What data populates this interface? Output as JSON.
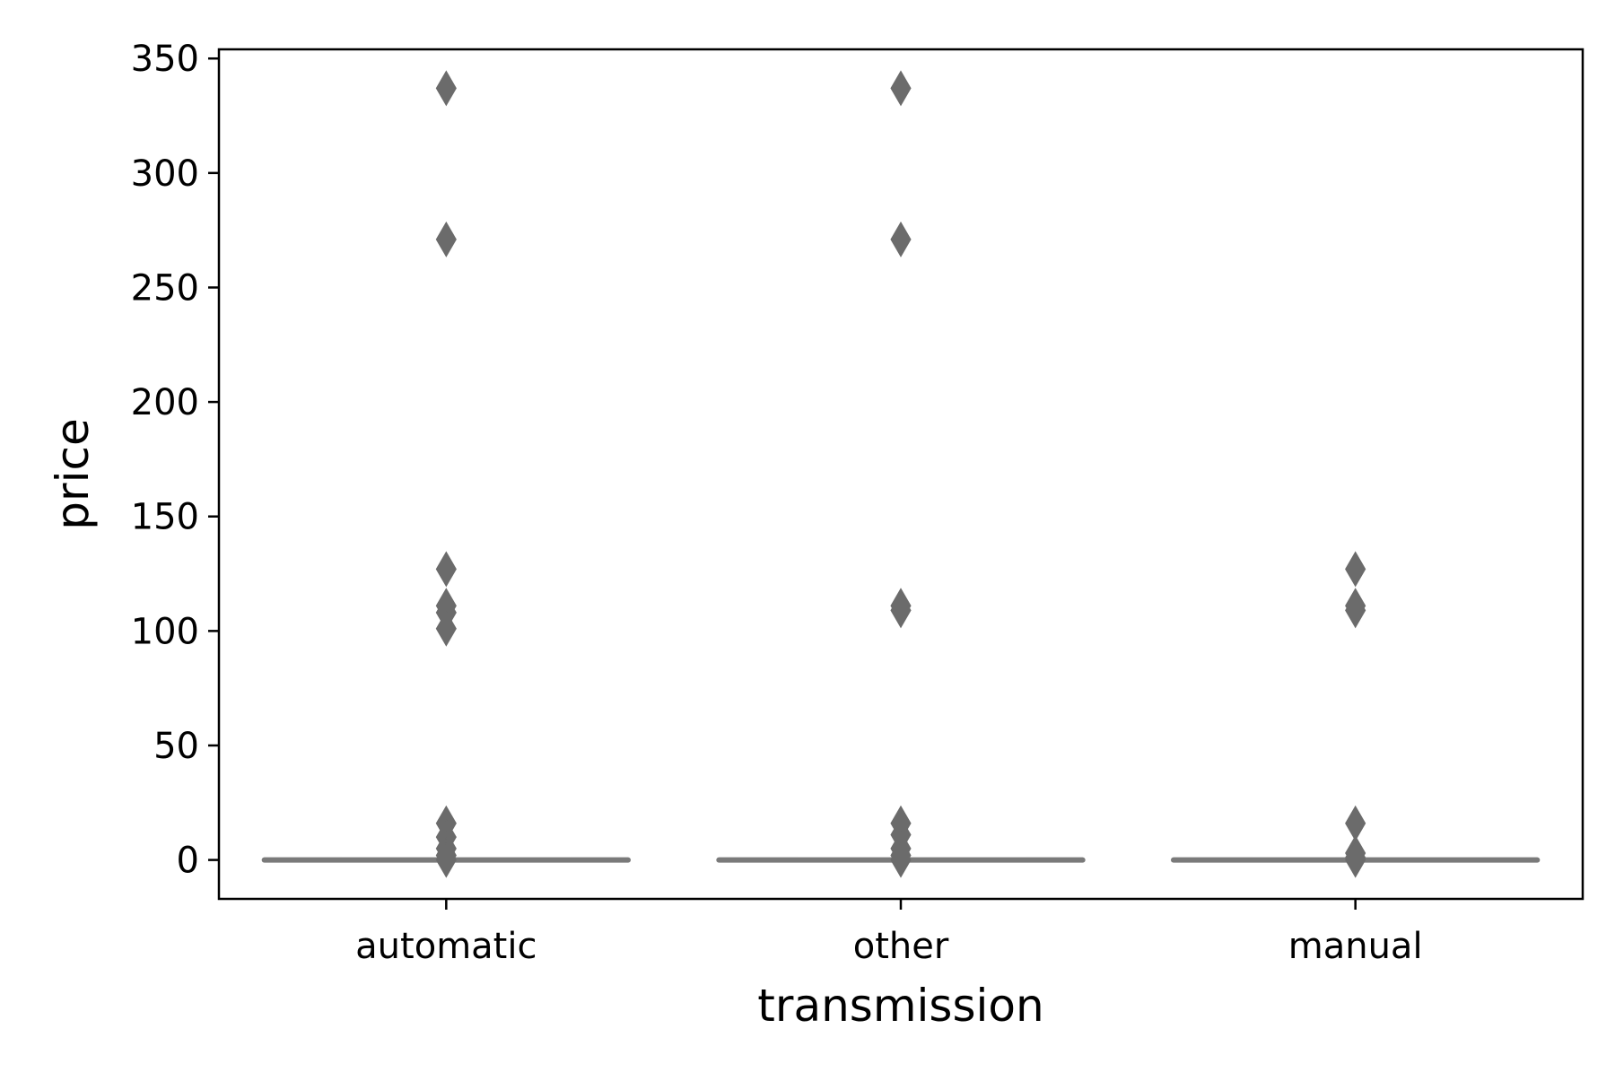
{
  "chart_data": {
    "type": "box",
    "title": "",
    "xlabel": "transmission",
    "ylabel": "price",
    "categories": [
      "automatic",
      "other",
      "manual"
    ],
    "ylim": [
      -17,
      354
    ],
    "yticks": [
      0,
      50,
      100,
      150,
      200,
      250,
      300,
      350
    ],
    "grid": false,
    "legend": "none",
    "colors": {
      "box": "#7a7a7a",
      "marker": "#6b6b6b",
      "axes": "#000000"
    },
    "boxes": [
      {
        "category": "automatic",
        "q1": 0,
        "median": 0,
        "q3": 0,
        "whisker_low": 0,
        "whisker_high": 0,
        "outliers": [
          337,
          271,
          127,
          111,
          108,
          101,
          16,
          10,
          5,
          2,
          0
        ]
      },
      {
        "category": "other",
        "q1": 0,
        "median": 0,
        "q3": 0,
        "whisker_low": 0,
        "whisker_high": 0,
        "outliers": [
          337,
          271,
          111,
          109,
          16,
          11,
          5,
          2,
          0
        ]
      },
      {
        "category": "manual",
        "q1": 0,
        "median": 0,
        "q3": 0,
        "whisker_low": 0,
        "whisker_high": 0,
        "outliers": [
          127,
          111,
          109,
          16,
          3,
          1,
          0
        ]
      }
    ]
  }
}
